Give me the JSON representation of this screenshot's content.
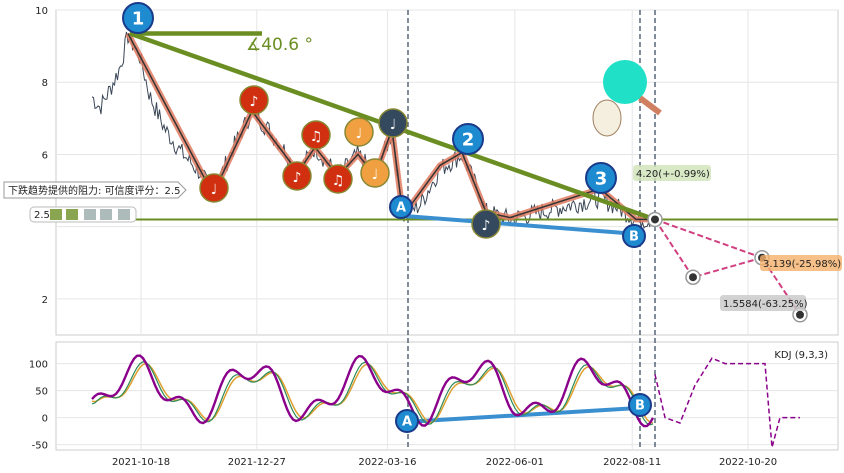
{
  "chart_data": {
    "type": "line",
    "y_ticks_main": [
      2,
      4,
      6,
      8,
      10
    ],
    "y_ticks_main_labels": [
      "2",
      "",
      "6",
      "8",
      "10"
    ],
    "y_ticks_kdj": [
      100,
      50,
      0,
      -50
    ],
    "x_tick_labels": [
      "2021-10-18",
      "2021-12-27",
      "2022-03-16",
      "2022-06-01",
      "2022-08-11",
      "2022-10-20"
    ],
    "ylim_main": [
      1,
      10
    ],
    "ylim_kdj": [
      -60,
      140
    ],
    "wave_points": [
      {
        "label": "1",
        "date": "2021-10-05",
        "price": 9.35
      },
      {
        "label": "2",
        "date": "2022-05-10",
        "price": 6.05
      },
      {
        "label": "3",
        "date": "2022-07-25",
        "price": 5.05
      },
      {
        "label": "A",
        "date": "2022-03-20",
        "price": 4.3
      },
      {
        "label": "B",
        "date": "2022-08-10",
        "price": 3.8
      }
    ],
    "support_level": 4.2,
    "support_label": "4.20(+-0.99%)",
    "target1_label": "3.139(-25.98%)",
    "target2_label": "1.5584(-63.25%)",
    "angle_label": "∡40.6 °",
    "resistance_text": "下跌趋势提供的阻力: 可信度评分：2.5",
    "score_text": "2.5",
    "kdj_label": "KDJ (9,3,3)",
    "colors": {
      "price": "#3a4656",
      "trend": "#6b8e23",
      "wave": "#e07a5f",
      "ab_line": "#3a8fd0",
      "k": "#8b008b",
      "d": "#e0a030",
      "j": "#2e8b57"
    }
  }
}
